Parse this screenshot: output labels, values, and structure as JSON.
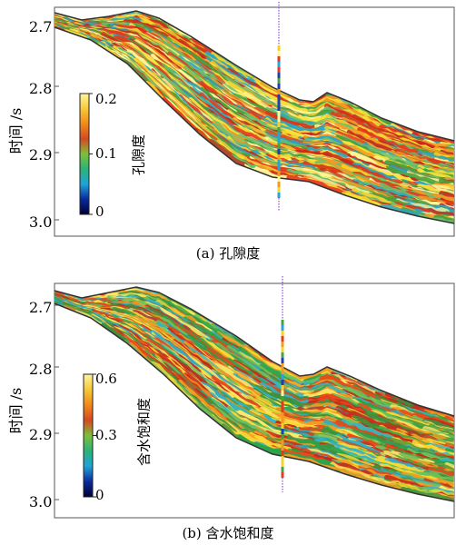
{
  "figures": [
    {
      "id": "a",
      "caption": "(a) 孔隙度",
      "ylabel": "时间 /s",
      "yticks": [
        "2.7",
        "2.8",
        "2.9",
        "3.0"
      ],
      "colorbar": {
        "title": "孔隙度",
        "ticks": [
          "0.2",
          "0.1",
          "0"
        ],
        "colors": [
          "#000032",
          "#0a2a9c",
          "#1fa3d8",
          "#2bb37a",
          "#7dbf3a",
          "#d44a22",
          "#f08a1a",
          "#f6c93a",
          "#fff4a0"
        ]
      },
      "palette": [
        "#f9e43a",
        "#f7d12c",
        "#e63a1f",
        "#c8281a",
        "#48a23d",
        "#6cc06a",
        "#f39a23",
        "#fff59a",
        "#2aa6c4"
      ]
    },
    {
      "id": "b",
      "caption": "(b) 含水饱和度",
      "ylabel": "时间 /s",
      "yticks": [
        "2.7",
        "2.8",
        "2.9",
        "3.0"
      ],
      "colorbar": {
        "title": "含水饱和度",
        "ticks": [
          "0.6",
          "0.3",
          "0"
        ],
        "colors": [
          "#000032",
          "#0a2a9c",
          "#1fa3d8",
          "#2bb37a",
          "#7dbf3a",
          "#d44a22",
          "#f08a1a",
          "#f6c93a",
          "#fff4a0"
        ]
      },
      "palette": [
        "#f9d934",
        "#e84a1c",
        "#2ea34a",
        "#6fbf5c",
        "#30b3c9",
        "#f39c22",
        "#fbe86a",
        "#c72a1b",
        "#3f8f3a"
      ]
    }
  ]
}
